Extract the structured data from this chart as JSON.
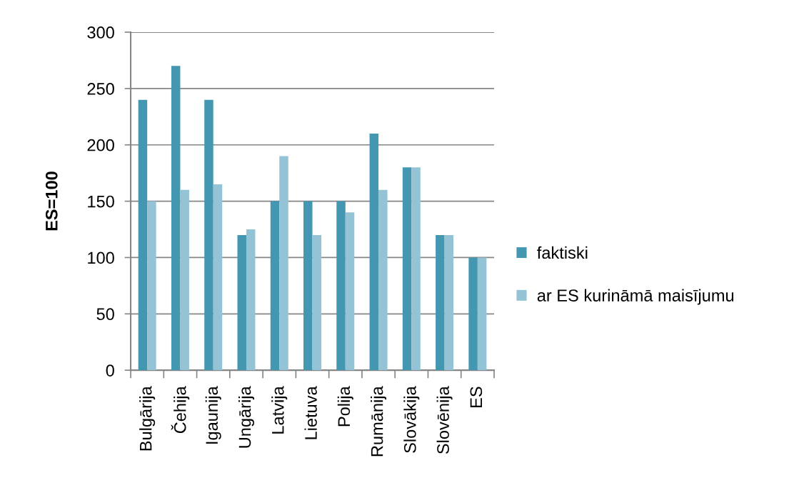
{
  "chart_data": {
    "type": "bar",
    "ylabel": "ES=100",
    "categories": [
      "Bulgārija",
      "Čehija",
      "Igaunija",
      "Ungārija",
      "Latvija",
      "Lietuva",
      "Polija",
      "Rumānija",
      "Slovākija",
      "Slovēnija",
      "ES"
    ],
    "series": [
      {
        "name": "faktiski",
        "color": "#4397b0",
        "values": [
          240,
          270,
          240,
          120,
          150,
          150,
          150,
          210,
          180,
          120,
          100
        ]
      },
      {
        "name": "ar ES kurināmā maisījumu",
        "color": "#93c3d5",
        "values": [
          150,
          160,
          165,
          125,
          190,
          120,
          140,
          160,
          180,
          120,
          100
        ]
      }
    ],
    "ylim": [
      0,
      300
    ],
    "yticks": [
      0,
      50,
      100,
      150,
      200,
      250,
      300
    ],
    "grid": "y",
    "legend": "right"
  }
}
